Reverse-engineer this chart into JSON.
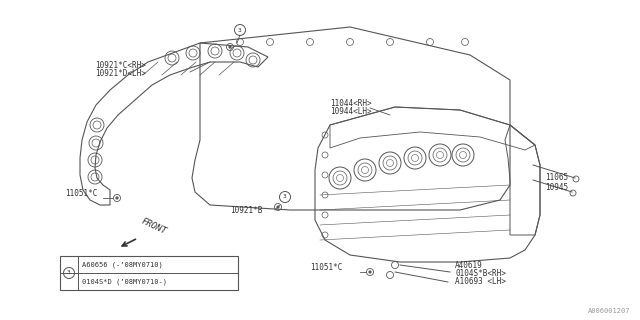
{
  "bg_color": "#ffffff",
  "line_color": "#555555",
  "text_color": "#333333",
  "fig_width": 6.4,
  "fig_height": 3.2,
  "dpi": 100,
  "watermark": "A006001207",
  "labels": {
    "top_left_1": "10921*C<RH>",
    "top_left_2": "10921*D<LH>",
    "top_mid_right": "11044<RH>",
    "top_mid_right2": "10944<LH>",
    "left_mid": "11051*C",
    "center_bolt": "10921*B",
    "front_label": "FRONT",
    "bottom_right_1": "11065",
    "bottom_right_2": "10945",
    "bottom_center": "11051*C",
    "bottom_a": "A40619",
    "bottom_b1": "0104S*B<RH>",
    "bottom_b2": "A10693 <LH>",
    "legend_1": "A60656 (-’08MY0710)",
    "legend_2": "0104S*D (’08MY0710-)"
  }
}
